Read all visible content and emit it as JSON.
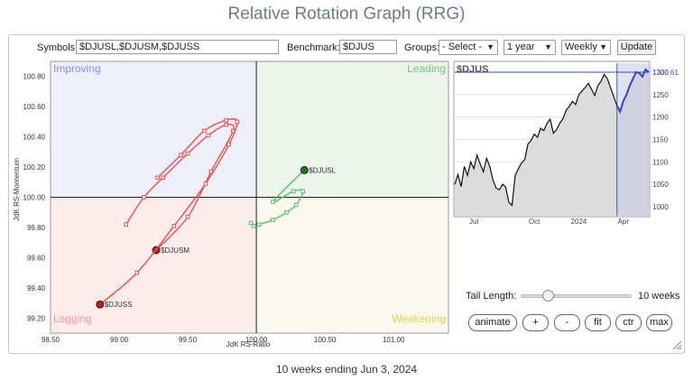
{
  "title": "Relative Rotation Graph (RRG)",
  "controls": {
    "symbols_label": "Symbols:",
    "symbols_value": "$DJUSL,$DJUSM,$DJUSS",
    "benchmark_label": "Benchmark:",
    "benchmark_value": "$DJUS",
    "groups_label": "Groups:",
    "groups_value": "- Select -",
    "period_value": "1 year",
    "interval_value": "Weekly",
    "update_label": "Update"
  },
  "quadrants": {
    "improving": "Improving",
    "leading": "Leading",
    "lagging": "Lagging",
    "weakening": "Weakening"
  },
  "quadrant_colors": {
    "improving": "#eeeff9",
    "leading": "#ecf4ec",
    "lagging": "#fbecec",
    "weakening": "#fbf9ee"
  },
  "quadrant_label_colors": {
    "improving": "#8a90dd",
    "leading": "#7cc67c",
    "lagging": "#f09a9a",
    "weakening": "#e8cf58"
  },
  "chart_data": [
    {
      "type": "scatter",
      "xlabel": "JdK RS-Ratio",
      "ylabel": "JdK RS-Momentum",
      "xlim": [
        98.5,
        101.4
      ],
      "ylim": [
        99.1,
        100.9
      ],
      "center": [
        100,
        100
      ],
      "xticks": [
        "98.50",
        "99.00",
        "99.50",
        "100.00",
        "100.50",
        "101.00"
      ],
      "yticks": [
        "99.20",
        "99.40",
        "99.60",
        "99.80",
        "100.00",
        "100.20",
        "100.40",
        "100.60",
        "100.80"
      ],
      "series": [
        {
          "name": "$DJUSL",
          "color": "#5bbd5b",
          "head_color": "#1f7a1f",
          "points": [
            [
              99.96,
              99.83
            ],
            [
              99.98,
              99.81
            ],
            [
              100.02,
              99.82
            ],
            [
              100.12,
              99.85
            ],
            [
              100.22,
              99.9
            ],
            [
              100.29,
              99.95
            ],
            [
              100.34,
              100.04
            ],
            [
              100.27,
              100.04
            ],
            [
              100.12,
              99.97
            ],
            [
              100.35,
              100.18
            ]
          ]
        },
        {
          "name": "$DJUSM",
          "color": "#e35050",
          "head_color": "#c41c1c",
          "points": [
            [
              99.05,
              99.82
            ],
            [
              99.18,
              100.0
            ],
            [
              99.32,
              100.13
            ],
            [
              99.5,
              100.29
            ],
            [
              99.65,
              100.41
            ],
            [
              99.78,
              100.48
            ],
            [
              99.83,
              100.44
            ],
            [
              99.67,
              100.17
            ],
            [
              99.5,
              99.87
            ],
            [
              99.27,
              99.65
            ]
          ]
        },
        {
          "name": "$DJUSS",
          "color": "#e35050",
          "head_color": "#c41c1c",
          "points": [
            [
              99.28,
              100.13
            ],
            [
              99.45,
              100.28
            ],
            [
              99.62,
              100.44
            ],
            [
              99.78,
              100.51
            ],
            [
              99.86,
              100.5
            ],
            [
              99.8,
              100.35
            ],
            [
              99.63,
              100.09
            ],
            [
              99.4,
              99.81
            ],
            [
              99.13,
              99.5
            ],
            [
              98.86,
              99.29
            ]
          ]
        }
      ]
    },
    {
      "type": "area",
      "title": "$DJUS",
      "last_value_label": "1300.61",
      "ylim": [
        980,
        1320
      ],
      "yticks": [
        "1300",
        "1250",
        "1200",
        "1150",
        "1100",
        "1050",
        "1000"
      ],
      "xticks": [
        "Jul",
        "Oct",
        "2024",
        "Apr"
      ],
      "values": [
        1050,
        1072,
        1045,
        1090,
        1070,
        1100,
        1085,
        1115,
        1095,
        1078,
        1108,
        1090,
        1060,
        1042,
        1038,
        1050,
        1044,
        1010,
        1003,
        1070,
        1085,
        1098,
        1105,
        1140,
        1148,
        1162,
        1155,
        1175,
        1170,
        1186,
        1195,
        1164,
        1172,
        1186,
        1196,
        1215,
        1224,
        1235,
        1228,
        1250,
        1258,
        1266,
        1275,
        1262,
        1248,
        1270,
        1280,
        1295,
        1285,
        1265,
        1245,
        1225,
        1212,
        1236,
        1250,
        1270,
        1285,
        1300,
        1298,
        1290,
        1306,
        1300
      ]
    }
  ],
  "tail": {
    "label": "Tail Length:",
    "value_label": "10 weeks",
    "value": 10,
    "max": 40
  },
  "buttons": {
    "animate": "animate",
    "plus": "+",
    "minus": "-",
    "fit": "fit",
    "ctr": "ctr",
    "max": "max"
  },
  "footer": "10 weeks ending Jun 3, 2024"
}
